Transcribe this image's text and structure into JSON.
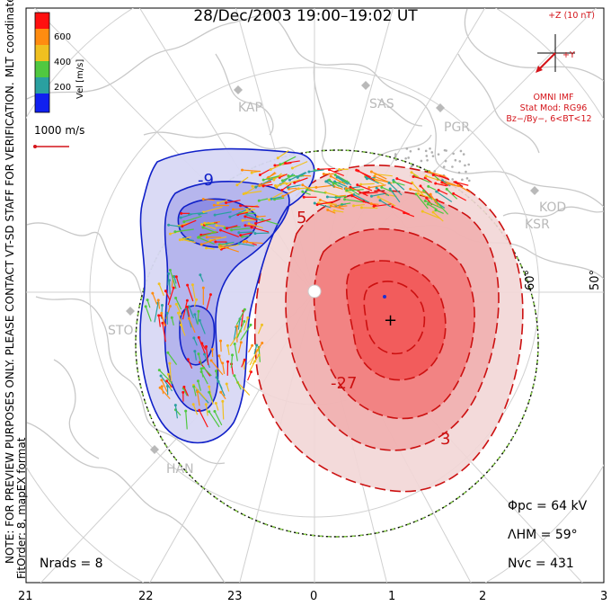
{
  "title": "28/Dec/2003 19:00–19:02 UT",
  "colorbar": {
    "label": "Vel [m/s]",
    "ticks": [
      "600",
      "400",
      "200"
    ],
    "colors": [
      "#ff1010",
      "#ff8c10",
      "#f0c020",
      "#50c840",
      "#2aa0a0",
      "#1020f0"
    ]
  },
  "side_text": {
    "coords": "MLT coordinates",
    "note": "NOTE: FOR PREVIEW PURPOSES ONLY. PLEASE CONTACT VT-SD STAFF FOR VERIFICATION.",
    "fit": "FitOrder: 8, mapEX format"
  },
  "scale_vector": "1000 m/s",
  "imf": {
    "z_label": "+Z (10 nT)",
    "y_label": "+Y",
    "source": "OMNI IMF",
    "model": "Stat Mod: RG96",
    "condition": "Bz−/By−, 6<BT<12"
  },
  "stations": [
    "KAP",
    "SAS",
    "PGR",
    "KSR",
    "KOD",
    "STO",
    "HAN"
  ],
  "contour_labels": [
    "-9",
    "-",
    "5",
    "-27",
    "3",
    "+"
  ],
  "latitude_labels": [
    "60°",
    "50°"
  ],
  "mlt_axis": [
    "21",
    "22",
    "23",
    "0",
    "1",
    "2",
    "3"
  ],
  "stats": {
    "phi_pc": "Φpc = 64 kV",
    "lambda_hm": "ΛHM = 59°",
    "n_vc": "Nvc = 431",
    "n_rads": "Nrads = 8"
  }
}
